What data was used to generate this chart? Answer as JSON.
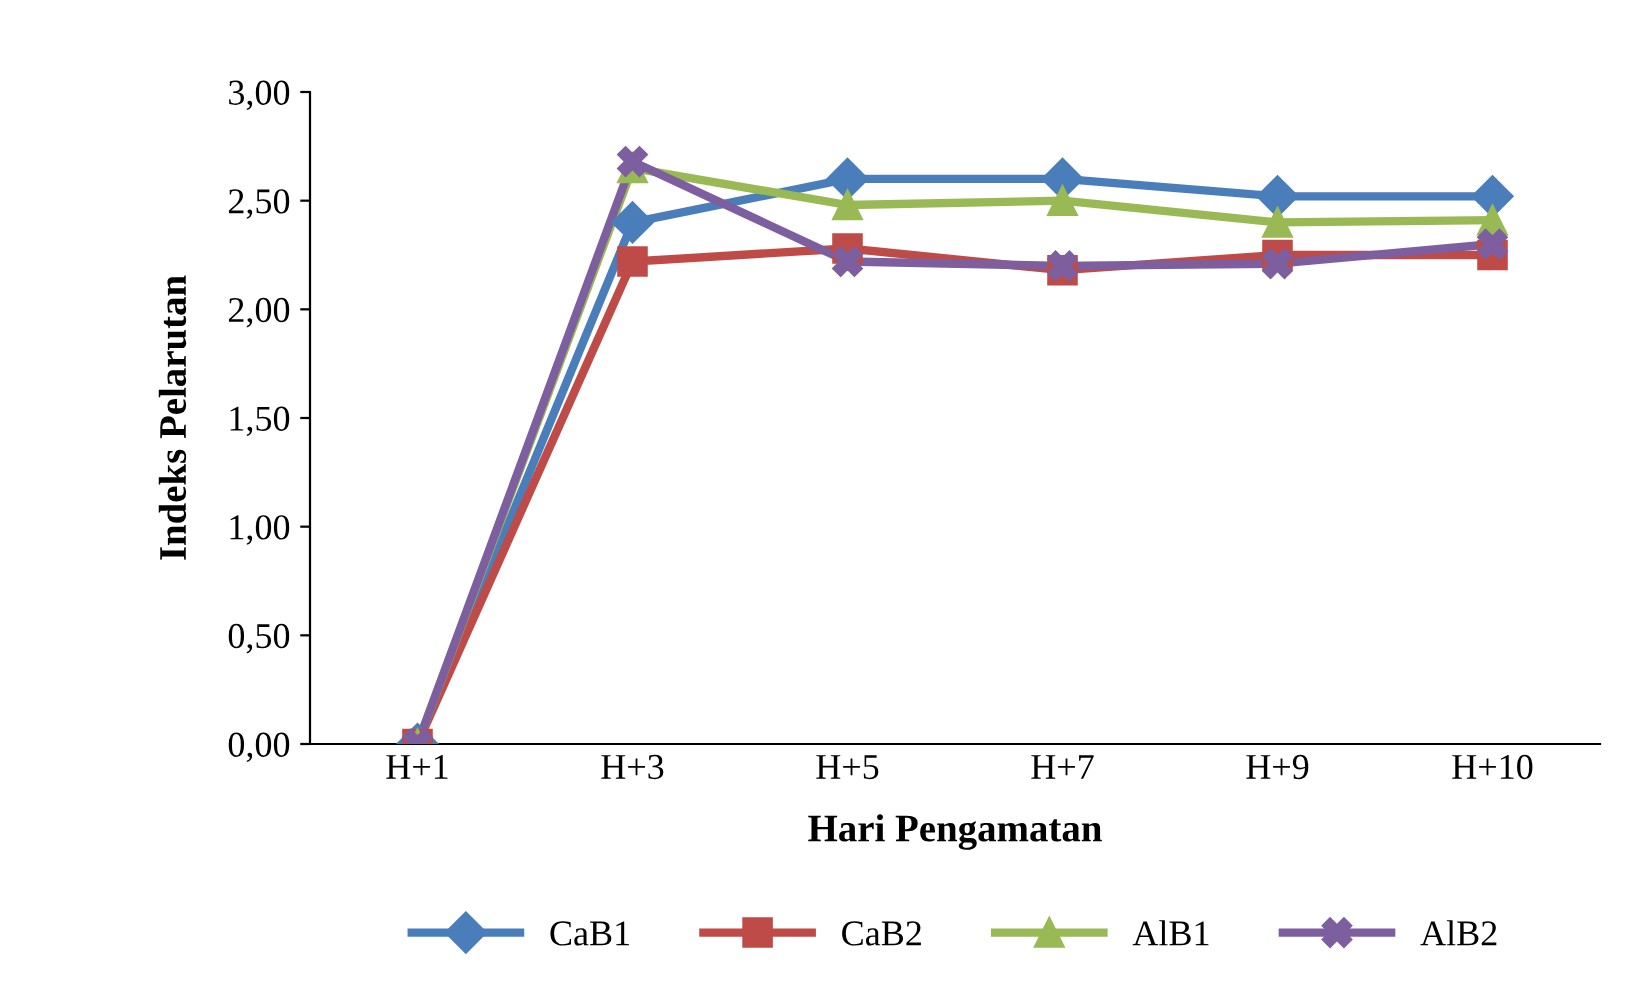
{
  "chart_data": {
    "type": "line",
    "xlabel": "Hari Pengamatan",
    "ylabel": "Indeks Pelarutan",
    "categories": [
      "H+1",
      "H+3",
      "H+5",
      "H+7",
      "H+9",
      "H+10"
    ],
    "series": [
      {
        "name": "CaB1",
        "color": "#4a7ebb",
        "marker": "diamond",
        "values": [
          0,
          2.4,
          2.6,
          2.6,
          2.52,
          2.52
        ]
      },
      {
        "name": "CaB2",
        "color": "#be4b48",
        "marker": "square",
        "values": [
          0,
          2.22,
          2.28,
          2.18,
          2.25,
          2.25
        ]
      },
      {
        "name": "AlB1",
        "color": "#98b954",
        "marker": "triangle",
        "values": [
          0,
          2.65,
          2.48,
          2.5,
          2.4,
          2.41
        ]
      },
      {
        "name": "AlB2",
        "color": "#7d5fa0",
        "marker": "cross",
        "values": [
          0,
          2.68,
          2.22,
          2.2,
          2.21,
          2.3
        ]
      }
    ],
    "ylim": [
      0,
      3
    ],
    "yticks": [
      {
        "value": 0,
        "label": "0,00"
      },
      {
        "value": 0.5,
        "label": "0,50"
      },
      {
        "value": 1,
        "label": "1,00"
      },
      {
        "value": 1.5,
        "label": "1,50"
      },
      {
        "value": 2,
        "label": "2,00"
      },
      {
        "value": 2.5,
        "label": "2,50"
      },
      {
        "value": 3,
        "label": "3,00"
      }
    ],
    "grid": false,
    "legend": "bottom",
    "line_style": "solid"
  }
}
